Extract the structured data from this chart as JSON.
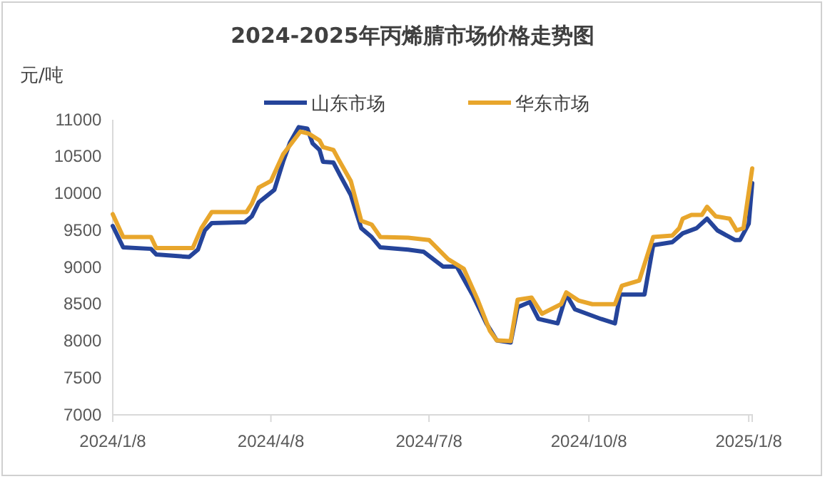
{
  "chart_data": {
    "type": "line",
    "title": "2024-2025年丙烯腈市场价格走势图",
    "ylabel": "元/吨",
    "legend": "top",
    "grid": false,
    "marker": "none",
    "line_style": "solid",
    "xlim": [
      "2024-01-08",
      "2025-01-10"
    ],
    "xticks": [
      {
        "value": "2024-01-08",
        "label": "2024/1/8"
      },
      {
        "value": "2024-04-08",
        "label": "2024/4/8"
      },
      {
        "value": "2024-07-08",
        "label": "2024/7/8"
      },
      {
        "value": "2024-10-08",
        "label": "2024/10/8"
      },
      {
        "value": "2025-01-08",
        "label": "2025/1/8"
      }
    ],
    "ylim": [
      7000,
      11000
    ],
    "yticks": [
      7000,
      7500,
      8000,
      8500,
      9000,
      9500,
      10000,
      10500,
      11000
    ],
    "series": [
      {
        "name": "山东市场",
        "color": "#25449a",
        "x": [
          "2024-01-08",
          "2024-01-14",
          "2024-01-30",
          "2024-02-02",
          "2024-02-21",
          "2024-02-26",
          "2024-03-01",
          "2024-03-05",
          "2024-03-24",
          "2024-03-28",
          "2024-04-01",
          "2024-04-10",
          "2024-04-15",
          "2024-04-19",
          "2024-04-24",
          "2024-04-29",
          "2024-05-02",
          "2024-05-06",
          "2024-05-08",
          "2024-05-14",
          "2024-05-18",
          "2024-05-24",
          "2024-05-30",
          "2024-06-05",
          "2024-06-10",
          "2024-06-26",
          "2024-07-05",
          "2024-07-16",
          "2024-07-24",
          "2024-08-02",
          "2024-08-10",
          "2024-08-16",
          "2024-08-24",
          "2024-08-28",
          "2024-09-04",
          "2024-09-09",
          "2024-09-20",
          "2024-09-25",
          "2024-09-30",
          "2024-10-15",
          "2024-10-23",
          "2024-10-26",
          "2024-11-09",
          "2024-11-14",
          "2024-11-25",
          "2024-12-01",
          "2024-12-09",
          "2024-12-15",
          "2024-12-21",
          "2024-12-31",
          "2025-01-03",
          "2025-01-08",
          "2025-01-10"
        ],
        "values": [
          9560,
          9270,
          9250,
          9175,
          9140,
          9240,
          9500,
          9600,
          9610,
          9690,
          9880,
          10050,
          10430,
          10690,
          10900,
          10880,
          10680,
          10590,
          10430,
          10420,
          10240,
          9980,
          9530,
          9410,
          9270,
          9240,
          9210,
          9010,
          9010,
          8630,
          8240,
          8010,
          7980,
          8460,
          8530,
          8300,
          8240,
          8630,
          8430,
          8300,
          8240,
          8630,
          8630,
          9300,
          9340,
          9460,
          9530,
          9660,
          9500,
          9370,
          9370,
          9590,
          10140
        ]
      },
      {
        "name": "华东市场",
        "color": "#e8a62c",
        "x": [
          "2024-01-08",
          "2024-01-14",
          "2024-01-30",
          "2024-02-02",
          "2024-02-23",
          "2024-02-28",
          "2024-03-05",
          "2024-03-25",
          "2024-03-28",
          "2024-04-01",
          "2024-04-08",
          "2024-04-15",
          "2024-04-25",
          "2024-04-30",
          "2024-05-06",
          "2024-05-08",
          "2024-05-14",
          "2024-05-17",
          "2024-05-24",
          "2024-05-30",
          "2024-06-05",
          "2024-06-10",
          "2024-06-26",
          "2024-07-08",
          "2024-07-19",
          "2024-07-28",
          "2024-08-05",
          "2024-08-12",
          "2024-08-16",
          "2024-08-24",
          "2024-08-28",
          "2024-09-05",
          "2024-09-11",
          "2024-09-22",
          "2024-09-25",
          "2024-10-02",
          "2024-10-10",
          "2024-10-23",
          "2024-10-27",
          "2024-11-06",
          "2024-11-14",
          "2024-11-25",
          "2024-11-29",
          "2024-12-01",
          "2024-12-06",
          "2024-12-12",
          "2024-12-15",
          "2024-12-20",
          "2024-12-28",
          "2025-01-01",
          "2025-01-05",
          "2025-01-10"
        ],
        "values": [
          9720,
          9410,
          9410,
          9260,
          9260,
          9530,
          9750,
          9750,
          9860,
          10080,
          10170,
          10530,
          10840,
          10810,
          10720,
          10630,
          10590,
          10460,
          10170,
          9630,
          9580,
          9410,
          9400,
          9370,
          9110,
          8980,
          8560,
          8140,
          8010,
          8000,
          8560,
          8590,
          8370,
          8500,
          8660,
          8550,
          8500,
          8500,
          8750,
          8820,
          9410,
          9430,
          9530,
          9660,
          9710,
          9710,
          9820,
          9690,
          9660,
          9500,
          9530,
          10340
        ]
      }
    ]
  }
}
